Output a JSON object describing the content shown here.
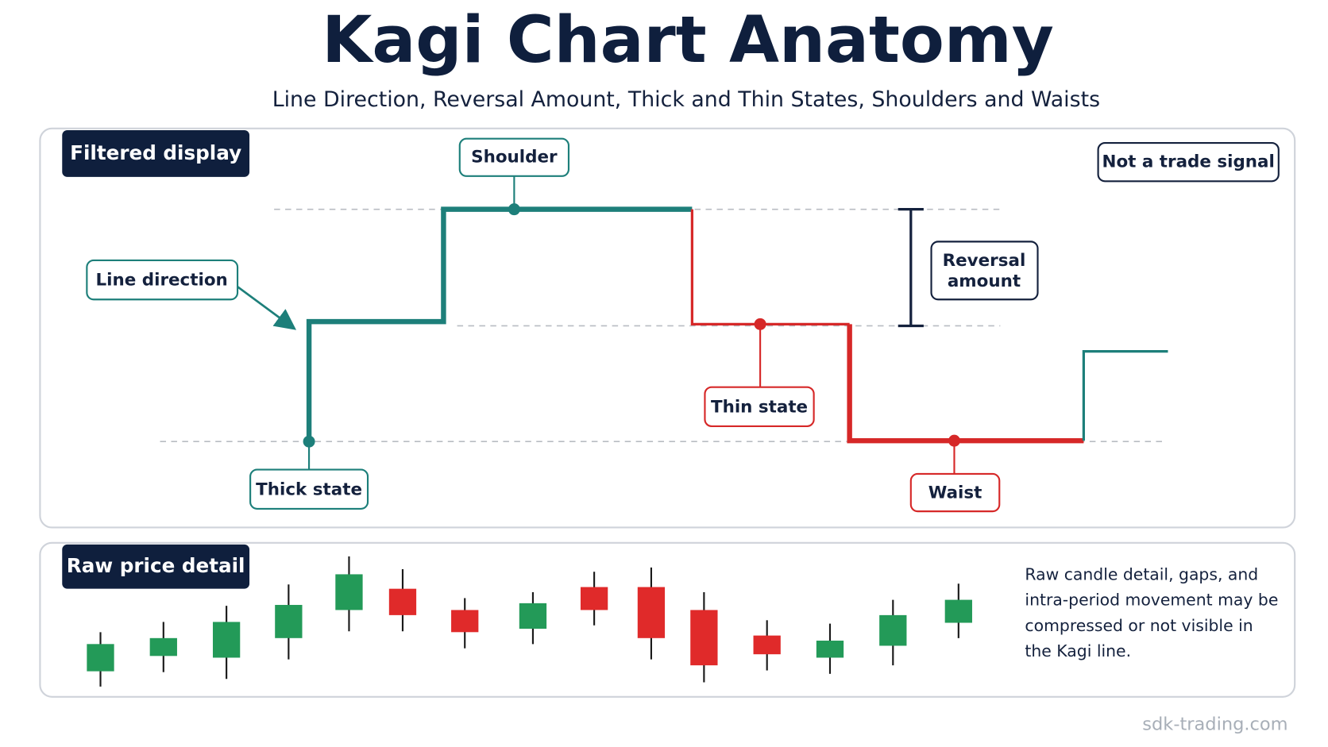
{
  "header": {
    "title": "Kagi Chart Anatomy",
    "subtitle": "Line Direction, Reversal Amount, Thick and Thin States, Shoulders and Waists"
  },
  "filtered_panel": {
    "label": "Filtered display",
    "badge": "Not a trade signal"
  },
  "callouts": {
    "shoulder": "Shoulder",
    "line_direction": "Line direction",
    "reversal_amount": [
      "Reversal",
      "amount"
    ],
    "thick_state": "Thick state",
    "thin_state": "Thin state",
    "waist": "Waist"
  },
  "raw_panel": {
    "label": "Raw price detail",
    "note": [
      "Raw candle detail, gaps, and",
      "intra-period movement may be",
      "compressed or not visible in",
      "the Kagi line."
    ]
  },
  "footer": "sdk-trading.com"
}
